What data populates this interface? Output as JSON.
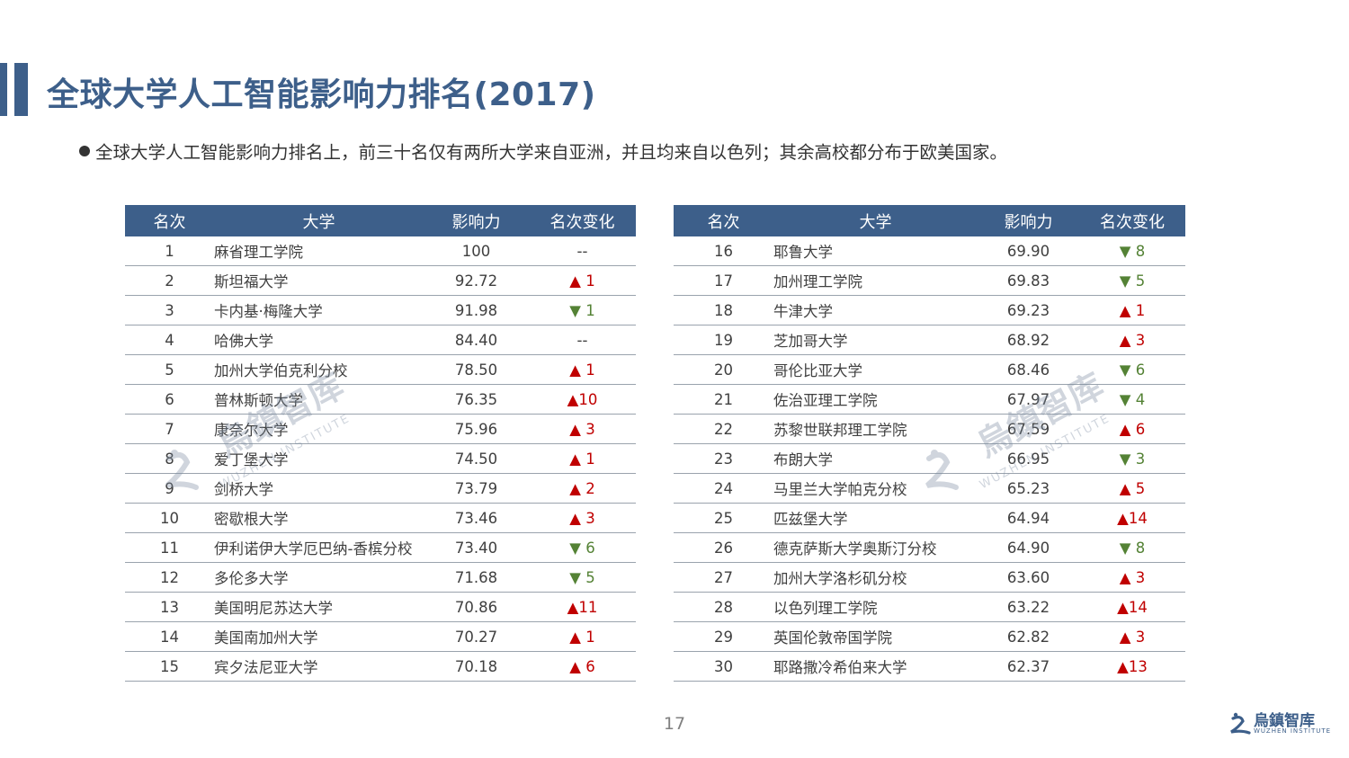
{
  "page": {
    "title": "全球大学人工智能影响力排名(2017)",
    "bullet": "全球大学人工智能影响力排名上，前三十名仅有两所大学来自亚洲，并且均来自以色列；其余高校都分布于欧美国家。",
    "page_number": "17"
  },
  "colors": {
    "header_bg": "#3d5f8a",
    "up": "#c00000",
    "down": "#548235"
  },
  "logo": {
    "cn": "烏鎮智库",
    "en": "WUZHEN INSTITUTE"
  },
  "watermark": {
    "cn": "烏鎮智库",
    "en": "WUZHEN INSTITUTE"
  },
  "table_headers": [
    "名次",
    "大学",
    "影响力",
    "名次变化"
  ],
  "left_rows": [
    {
      "rank": "1",
      "name": "麻省理工学院",
      "score": "100",
      "change": "--",
      "dir": "none"
    },
    {
      "rank": "2",
      "name": "斯坦福大学",
      "score": "92.72",
      "change": "▲ 1",
      "dir": "up"
    },
    {
      "rank": "3",
      "name": "卡内基·梅隆大学",
      "score": "91.98",
      "change": "▼ 1",
      "dir": "down"
    },
    {
      "rank": "4",
      "name": "哈佛大学",
      "score": "84.40",
      "change": "--",
      "dir": "none"
    },
    {
      "rank": "5",
      "name": "加州大学伯克利分校",
      "score": "78.50",
      "change": "▲ 1",
      "dir": "up"
    },
    {
      "rank": "6",
      "name": "普林斯顿大学",
      "score": "76.35",
      "change": "▲10",
      "dir": "up"
    },
    {
      "rank": "7",
      "name": "康奈尔大学",
      "score": "75.96",
      "change": "▲ 3",
      "dir": "up"
    },
    {
      "rank": "8",
      "name": "爱丁堡大学",
      "score": "74.50",
      "change": "▲ 1",
      "dir": "up"
    },
    {
      "rank": "9",
      "name": "剑桥大学",
      "score": "73.79",
      "change": "▲ 2",
      "dir": "up"
    },
    {
      "rank": "10",
      "name": "密歇根大学",
      "score": "73.46",
      "change": "▲ 3",
      "dir": "up"
    },
    {
      "rank": "11",
      "name": "伊利诺伊大学厄巴纳-香槟分校",
      "score": "73.40",
      "change": "▼ 6",
      "dir": "down"
    },
    {
      "rank": "12",
      "name": "多伦多大学",
      "score": "71.68",
      "change": "▼ 5",
      "dir": "down"
    },
    {
      "rank": "13",
      "name": "美国明尼苏达大学",
      "score": "70.86",
      "change": "▲11",
      "dir": "up"
    },
    {
      "rank": "14",
      "name": "美国南加州大学",
      "score": "70.27",
      "change": "▲ 1",
      "dir": "up"
    },
    {
      "rank": "15",
      "name": "宾夕法尼亚大学",
      "score": "70.18",
      "change": "▲ 6",
      "dir": "up"
    }
  ],
  "right_rows": [
    {
      "rank": "16",
      "name": "耶鲁大学",
      "score": "69.90",
      "change": "▼ 8",
      "dir": "down"
    },
    {
      "rank": "17",
      "name": "加州理工学院",
      "score": "69.83",
      "change": "▼ 5",
      "dir": "down"
    },
    {
      "rank": "18",
      "name": "牛津大学",
      "score": "69.23",
      "change": "▲ 1",
      "dir": "up"
    },
    {
      "rank": "19",
      "name": "芝加哥大学",
      "score": "68.92",
      "change": "▲ 3",
      "dir": "up"
    },
    {
      "rank": "20",
      "name": "哥伦比亚大学",
      "score": "68.46",
      "change": "▼ 6",
      "dir": "down"
    },
    {
      "rank": "21",
      "name": "佐治亚理工学院",
      "score": "67.97",
      "change": "▼ 4",
      "dir": "down"
    },
    {
      "rank": "22",
      "name": "苏黎世联邦理工学院",
      "score": "67.59",
      "change": "▲ 6",
      "dir": "up"
    },
    {
      "rank": "23",
      "name": "布朗大学",
      "score": "66.95",
      "change": "▼ 3",
      "dir": "down"
    },
    {
      "rank": "24",
      "name": "马里兰大学帕克分校",
      "score": "65.23",
      "change": "▲ 5",
      "dir": "up"
    },
    {
      "rank": "25",
      "name": "匹兹堡大学",
      "score": "64.94",
      "change": "▲14",
      "dir": "up"
    },
    {
      "rank": "26",
      "name": "德克萨斯大学奥斯汀分校",
      "score": "64.90",
      "change": "▼ 8",
      "dir": "down"
    },
    {
      "rank": "27",
      "name": "加州大学洛杉矶分校",
      "score": "63.60",
      "change": "▲ 3",
      "dir": "up"
    },
    {
      "rank": "28",
      "name": "以色列理工学院",
      "score": "63.22",
      "change": "▲14",
      "dir": "up"
    },
    {
      "rank": "29",
      "name": "英国伦敦帝国学院",
      "score": "62.82",
      "change": "▲ 3",
      "dir": "up"
    },
    {
      "rank": "30",
      "name": "耶路撒冷希伯来大学",
      "score": "62.37",
      "change": "▲13",
      "dir": "up"
    }
  ]
}
